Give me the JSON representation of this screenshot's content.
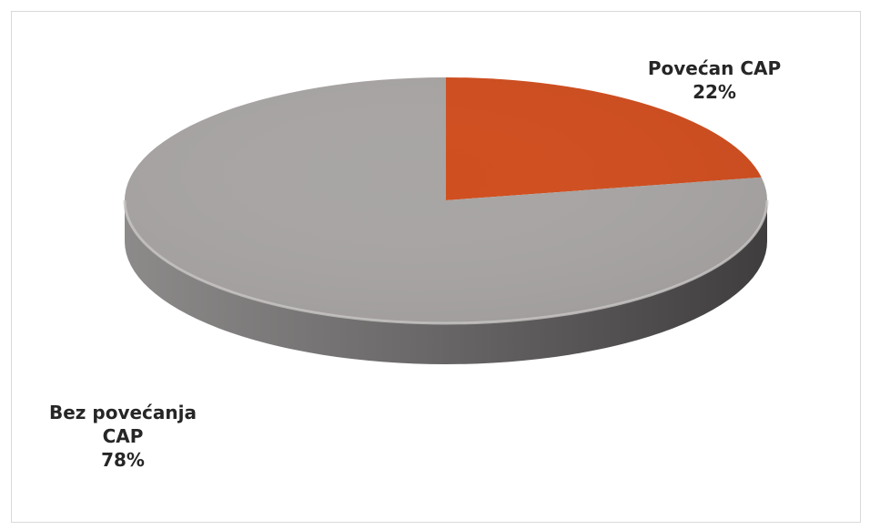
{
  "chart_data": {
    "type": "pie",
    "style": "3d",
    "title": "",
    "legend": "none",
    "slices": [
      {
        "label_lines": [
          "Povećan CAP"
        ],
        "value": 22,
        "value_label": "22%",
        "color": "#d04e1f"
      },
      {
        "label_lines": [
          "Bez povećanja",
          "CAP"
        ],
        "value": 78,
        "value_label": "78%",
        "color": "#a8a5a4"
      }
    ]
  }
}
